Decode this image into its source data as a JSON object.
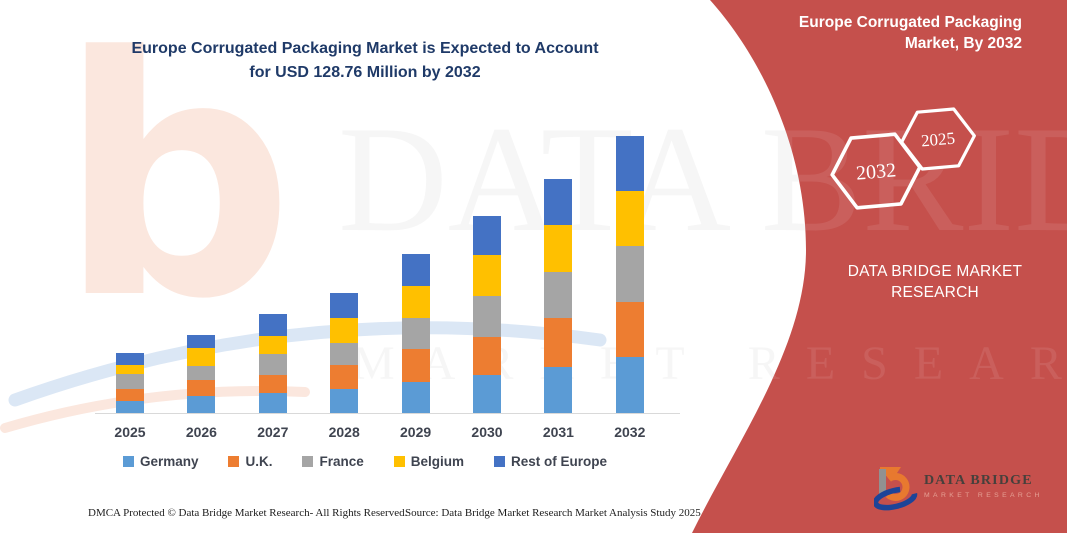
{
  "page_title": {
    "line1": "Europe Corrugated Packaging Market is Expected to Account",
    "line2": "for USD 128.76 Million by 2032"
  },
  "banner": {
    "color": "#C5504C",
    "heading": "Europe Corrugated Packaging Market, By 2032",
    "hexagon_back_label": "2032",
    "hexagon_front_label": "2025",
    "caption": "DATA BRIDGE MARKET RESEARCH",
    "logo_wordmark": "DATA BRIDGE",
    "logo_subtitle": "MARKET RESEARCH"
  },
  "watermark": {
    "glyph": "b",
    "line1": "DATA BRIDGE",
    "line2": "MARKET RESEARCH"
  },
  "footer": {
    "left": "DMCA Protected © Data Bridge Market Research-  All Rights Reserved.",
    "right": "Source: Data Bridge Market Research  Market Analysis Study 2025"
  },
  "chart_data": {
    "type": "bar",
    "stacked": true,
    "title": "Europe Corrugated Packaging Market is Expected to Account for USD 128.76 Million by 2032",
    "unit": "USD Million",
    "categories": [
      "2025",
      "2026",
      "2027",
      "2028",
      "2029",
      "2030",
      "2031",
      "2032"
    ],
    "series": [
      {
        "name": "Germany",
        "color": "#5B9BD5",
        "values": [
          5.6,
          7.9,
          9.3,
          11.1,
          14.4,
          17.5,
          21.6,
          25.9
        ]
      },
      {
        "name": "U.K.",
        "color": "#ED7D31",
        "values": [
          5.6,
          7.4,
          8.3,
          11.1,
          15.3,
          17.7,
          22.4,
          25.9
        ]
      },
      {
        "name": "France",
        "color": "#A5A5A5",
        "values": [
          6.9,
          6.5,
          9.7,
          10.2,
          14.4,
          19.3,
          21.6,
          26.0
        ]
      },
      {
        "name": "Belgium",
        "color": "#FFC000",
        "values": [
          4.2,
          8.3,
          8.3,
          11.6,
          14.8,
          18.8,
          21.6,
          25.4
        ]
      },
      {
        "name": "Rest of Europe",
        "color": "#4472C4",
        "values": [
          5.6,
          6.0,
          10.2,
          11.6,
          14.8,
          18.5,
          21.8,
          25.56
        ]
      }
    ],
    "totals_by_year": [
      27.9,
      36.1,
      45.8,
      55.6,
      73.7,
      91.8,
      109.0,
      128.76
    ],
    "legend_position": "bottom",
    "grid": false,
    "value_axis_visible": false,
    "ylim": [
      0,
      135
    ]
  }
}
